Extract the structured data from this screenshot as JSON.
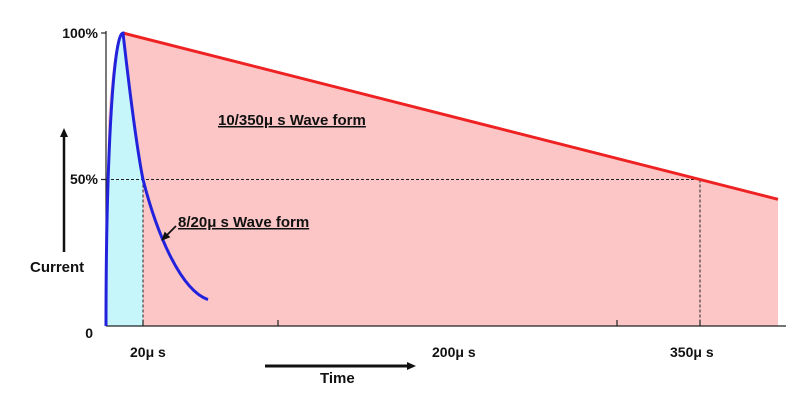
{
  "chart_data": {
    "type": "area",
    "title": "",
    "xlabel": "Time",
    "ylabel": "Current",
    "y_tick_labels": [
      "100%",
      "50%",
      "0"
    ],
    "x_tick_labels": [
      "20μ s",
      "200μ s",
      "350μ s"
    ],
    "y_unit": "%",
    "ylim": [
      0,
      100
    ],
    "reference_level": 50,
    "series": [
      {
        "name": "10/350μ s Wave form",
        "label": "10/350μ s Wave form",
        "color": "#ee2222",
        "fill": "#fcc6c6",
        "rise_time_us": 10,
        "half_value_time_us": 350,
        "peak_percent": 100
      },
      {
        "name": "8/20μ s Wave form",
        "label": "8/20μ s Wave form",
        "color": "#2222dd",
        "fill": "#c6f6fa",
        "rise_time_us": 8,
        "half_value_time_us": 20,
        "peak_percent": 100
      }
    ],
    "colors": {
      "axis": "#222222",
      "dashed": "#222222"
    }
  }
}
